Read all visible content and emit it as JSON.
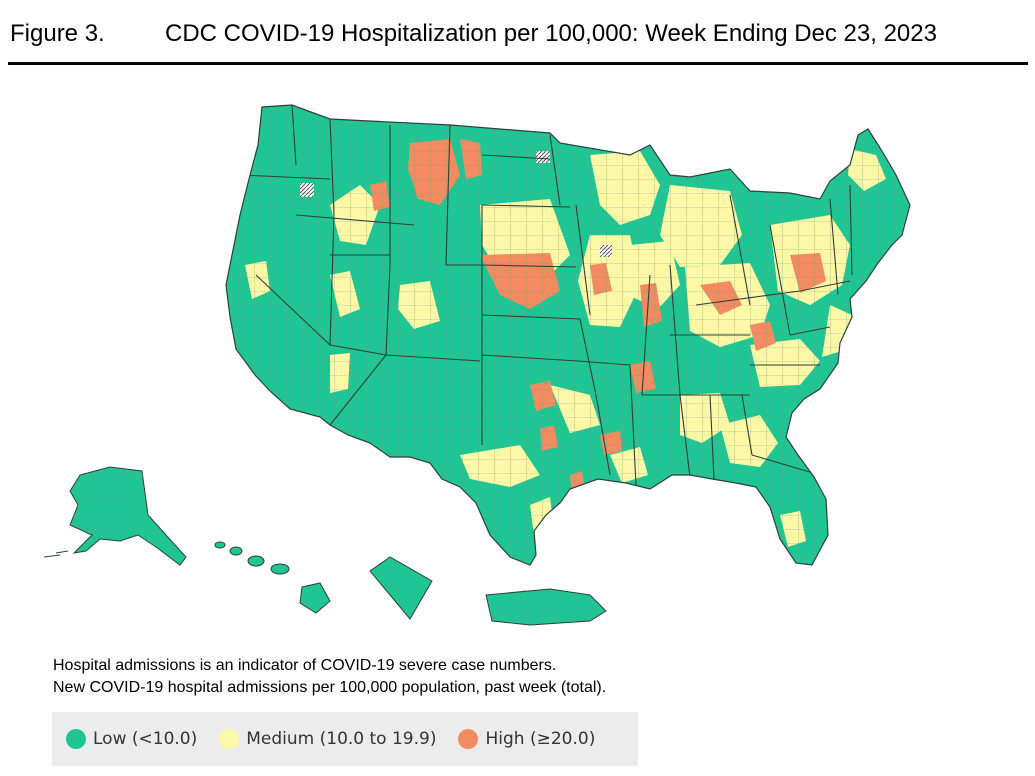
{
  "figure": {
    "label": "Figure 3.",
    "title": "CDC COVID-19 Hospitalization per 100,000: Week Ending Dec 23, 2023"
  },
  "note": {
    "line1": "Hospital admissions is an indicator of COVID-19 severe case numbers.",
    "line2": "New COVID-19 hospital admissions per 100,000 population, past week (total)."
  },
  "legend": [
    {
      "label": "Low (<10.0)",
      "color": "#1fc694"
    },
    {
      "label": "Medium (10.0 to 19.9)",
      "color": "#fdf8a6"
    },
    {
      "label": "High (≥20.0)",
      "color": "#f28b60"
    }
  ],
  "colors": {
    "low": "#1fc694",
    "medium": "#fdf8a6",
    "high": "#f28b60",
    "border": "#7a9c8e",
    "state_border": "#2f3f39"
  }
}
